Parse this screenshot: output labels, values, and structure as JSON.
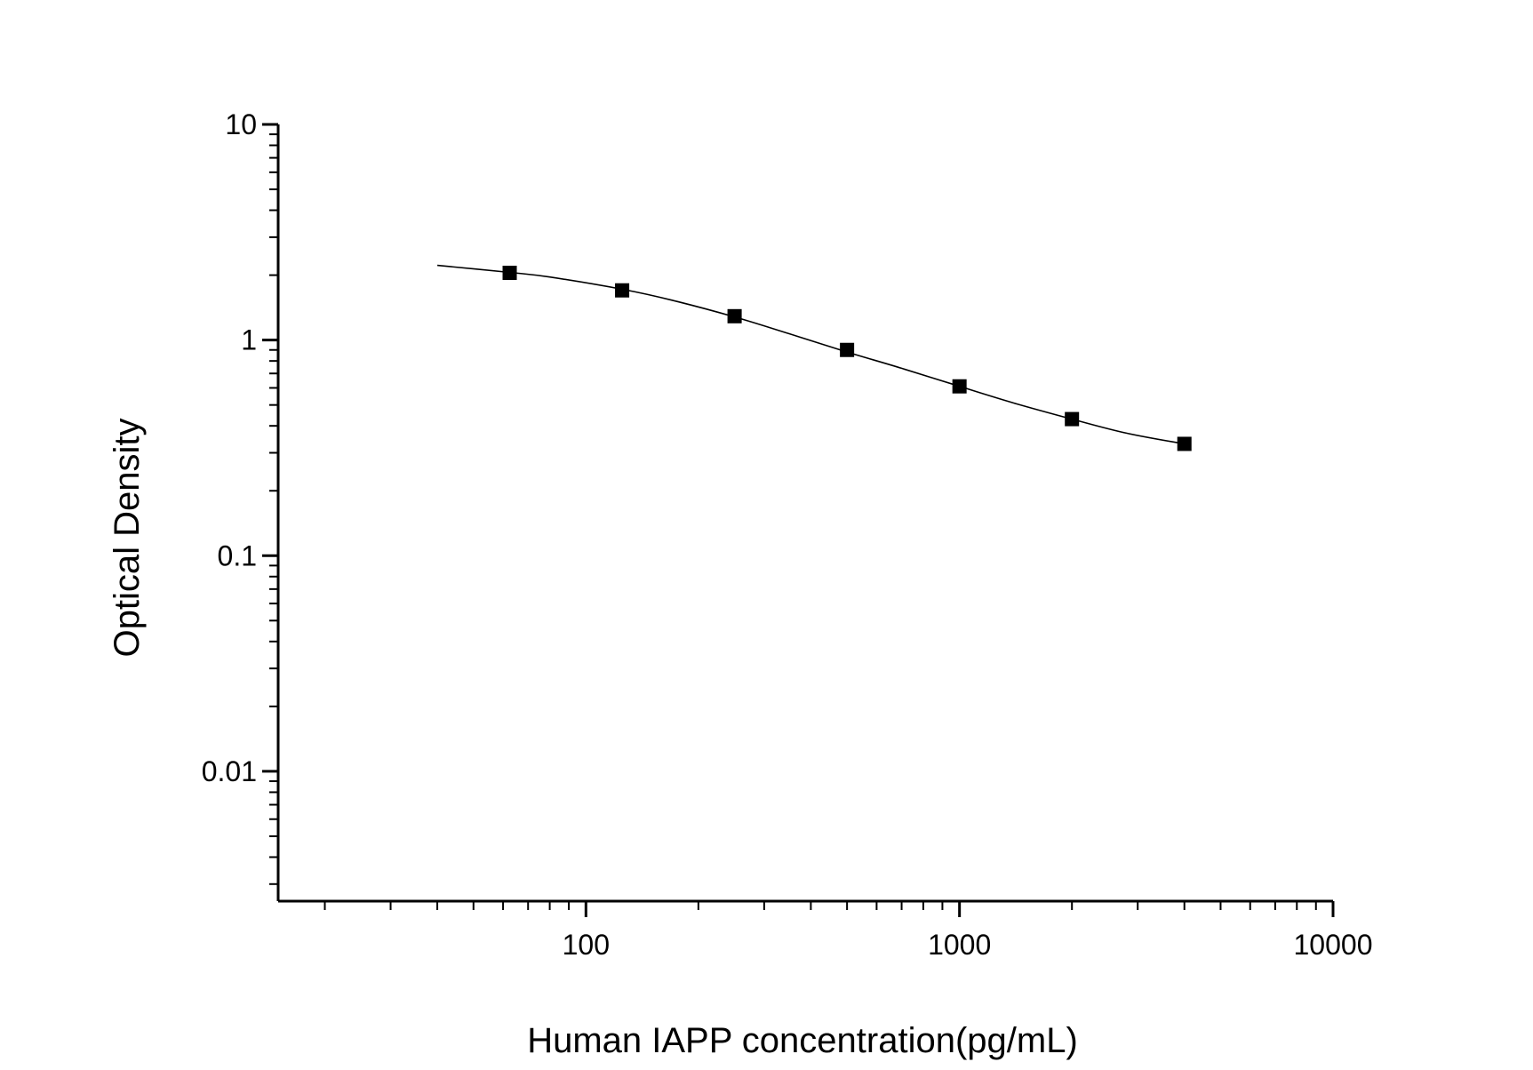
{
  "chart_data": {
    "type": "scatter",
    "xlabel": "Human IAPP concentration(pg/mL)",
    "ylabel": "Optical Density",
    "x_scale": "log",
    "y_scale": "log",
    "xlim": [
      15,
      10000
    ],
    "ylim": [
      0.0025,
      10
    ],
    "x_ticks": [
      {
        "value": 100,
        "label": "100"
      },
      {
        "value": 1000,
        "label": "1000"
      },
      {
        "value": 10000,
        "label": "10000"
      }
    ],
    "y_ticks": [
      {
        "value": 10,
        "label": "10"
      },
      {
        "value": 1,
        "label": "1"
      },
      {
        "value": 0.1,
        "label": "0.1"
      },
      {
        "value": 0.01,
        "label": "0.01"
      }
    ],
    "grid": false,
    "series": [
      {
        "x": [
          62.5,
          125,
          250,
          500,
          1000,
          2000,
          4000
        ],
        "y": [
          2.05,
          1.7,
          1.29,
          0.9,
          0.61,
          0.43,
          0.33
        ]
      }
    ],
    "fit_curve": {
      "x": [
        40,
        62.5,
        80,
        125,
        170,
        250,
        350,
        500,
        700,
        1000,
        1400,
        2000,
        2800,
        4000
      ],
      "y": [
        2.22,
        2.06,
        1.96,
        1.72,
        1.53,
        1.28,
        1.07,
        0.88,
        0.74,
        0.61,
        0.51,
        0.43,
        0.37,
        0.33
      ]
    },
    "colors": {
      "marker": "#000000",
      "line": "#000000",
      "axis": "#000000"
    }
  }
}
